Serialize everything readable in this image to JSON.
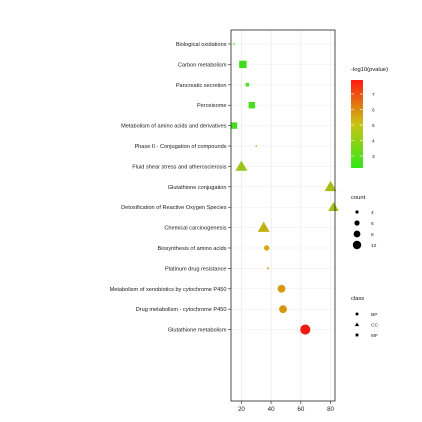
{
  "chart_data": {
    "type": "scatter",
    "xlim": [
      13,
      83
    ],
    "xticks": [
      20,
      40,
      60,
      80
    ],
    "categories": [
      "Biological oxidations",
      "Carbon metabolism",
      "Pancreatic secretion",
      "Peroxisome",
      "Metabolism of amino acids and derivatives",
      "Phase II - Conjugation of compounds",
      "Fluid shear stress and atherosclerosis",
      "Glutathione conjugation",
      "Detoxification of Reactive Oxygen Species",
      "Chemical carcinogenesis",
      "Biosynthesis of amino acids",
      "Platinum drug resistance",
      "Metabolism of xenobiotics by cytochrome P450",
      "Drug metabolism - cytochrome P450",
      "Glutathione metabolism"
    ],
    "points": [
      {
        "category": "Biological oxidations",
        "x": 15,
        "count": 3,
        "pvalue": 3.0,
        "class": "MF",
        "color": "#66e61e"
      },
      {
        "category": "Carbon metabolism",
        "x": 21,
        "count": 9,
        "pvalue": 3.2,
        "class": "MF",
        "color": "#3ddc1a"
      },
      {
        "category": "Pancreatic secretion",
        "x": 24,
        "count": 5,
        "pvalue": 3.1,
        "class": "MF",
        "color": "#4ee021"
      },
      {
        "category": "Peroxisome",
        "x": 27,
        "count": 8,
        "pvalue": 3.2,
        "class": "MF",
        "color": "#46de1c"
      },
      {
        "category": "Metabolism of amino acids and derivatives",
        "x": 15,
        "count": 8,
        "pvalue": 3.0,
        "class": "MF",
        "color": "#42dd1b"
      },
      {
        "category": "Phase II - Conjugation of compounds",
        "x": 30,
        "count": 3,
        "pvalue": 3.2,
        "class": "CC",
        "color": "#7ddc2e"
      },
      {
        "category": "Fluid shear stress and atherosclerosis",
        "x": 20,
        "count": 10,
        "pvalue": 4.0,
        "class": "CC",
        "color": "#9cc41a"
      },
      {
        "category": "Glutathione conjugation",
        "x": 80,
        "count": 10,
        "pvalue": 4.2,
        "class": "CC",
        "color": "#a9bc14"
      },
      {
        "category": "Detoxification of Reactive Oxygen Species",
        "x": 82,
        "count": 9,
        "pvalue": 4.0,
        "class": "CC",
        "color": "#a9b916"
      },
      {
        "category": "Chemical carcinogenesis",
        "x": 35,
        "count": 10,
        "pvalue": 4.5,
        "class": "CC",
        "color": "#c2b10f"
      },
      {
        "category": "Biosynthesis of amino acids",
        "x": 37,
        "count": 6,
        "pvalue": 4.8,
        "class": "BP",
        "color": "#d3a80e"
      },
      {
        "category": "Platinum drug resistance",
        "x": 38,
        "count": 3,
        "pvalue": 4.9,
        "class": "BP",
        "color": "#d7a20e"
      },
      {
        "category": "Metabolism of xenobiotics by cytochrome P450",
        "x": 47,
        "count": 8,
        "pvalue": 5.2,
        "class": "BP",
        "color": "#d59a0c"
      },
      {
        "category": "Drug metabolism - cytochrome P450",
        "x": 48,
        "count": 8,
        "pvalue": 5.2,
        "class": "BP",
        "color": "#d4970c"
      },
      {
        "category": "Glutathione metabolism",
        "x": 63,
        "count": 10,
        "pvalue": 7.0,
        "class": "BP",
        "color": "#ef1b10"
      }
    ]
  },
  "legend": {
    "color": {
      "title": "-log10(pvalue)",
      "ticks": [
        "7",
        "6",
        "5",
        "4",
        "3"
      ],
      "gradient_top": "#ff1a10",
      "gradient_mid": "#c8c414",
      "gradient_bottom": "#33e619"
    },
    "count": {
      "title": "count",
      "items": [
        {
          "label": "4",
          "r": 1.6
        },
        {
          "label": "6",
          "r": 2.6
        },
        {
          "label": "8",
          "r": 3.4
        },
        {
          "label": "10",
          "r": 4.2
        }
      ]
    },
    "class": {
      "title": "class",
      "items": [
        {
          "label": "BP",
          "shape": "circle"
        },
        {
          "label": "CC",
          "shape": "triangle"
        },
        {
          "label": "MF",
          "shape": "square"
        }
      ]
    }
  }
}
